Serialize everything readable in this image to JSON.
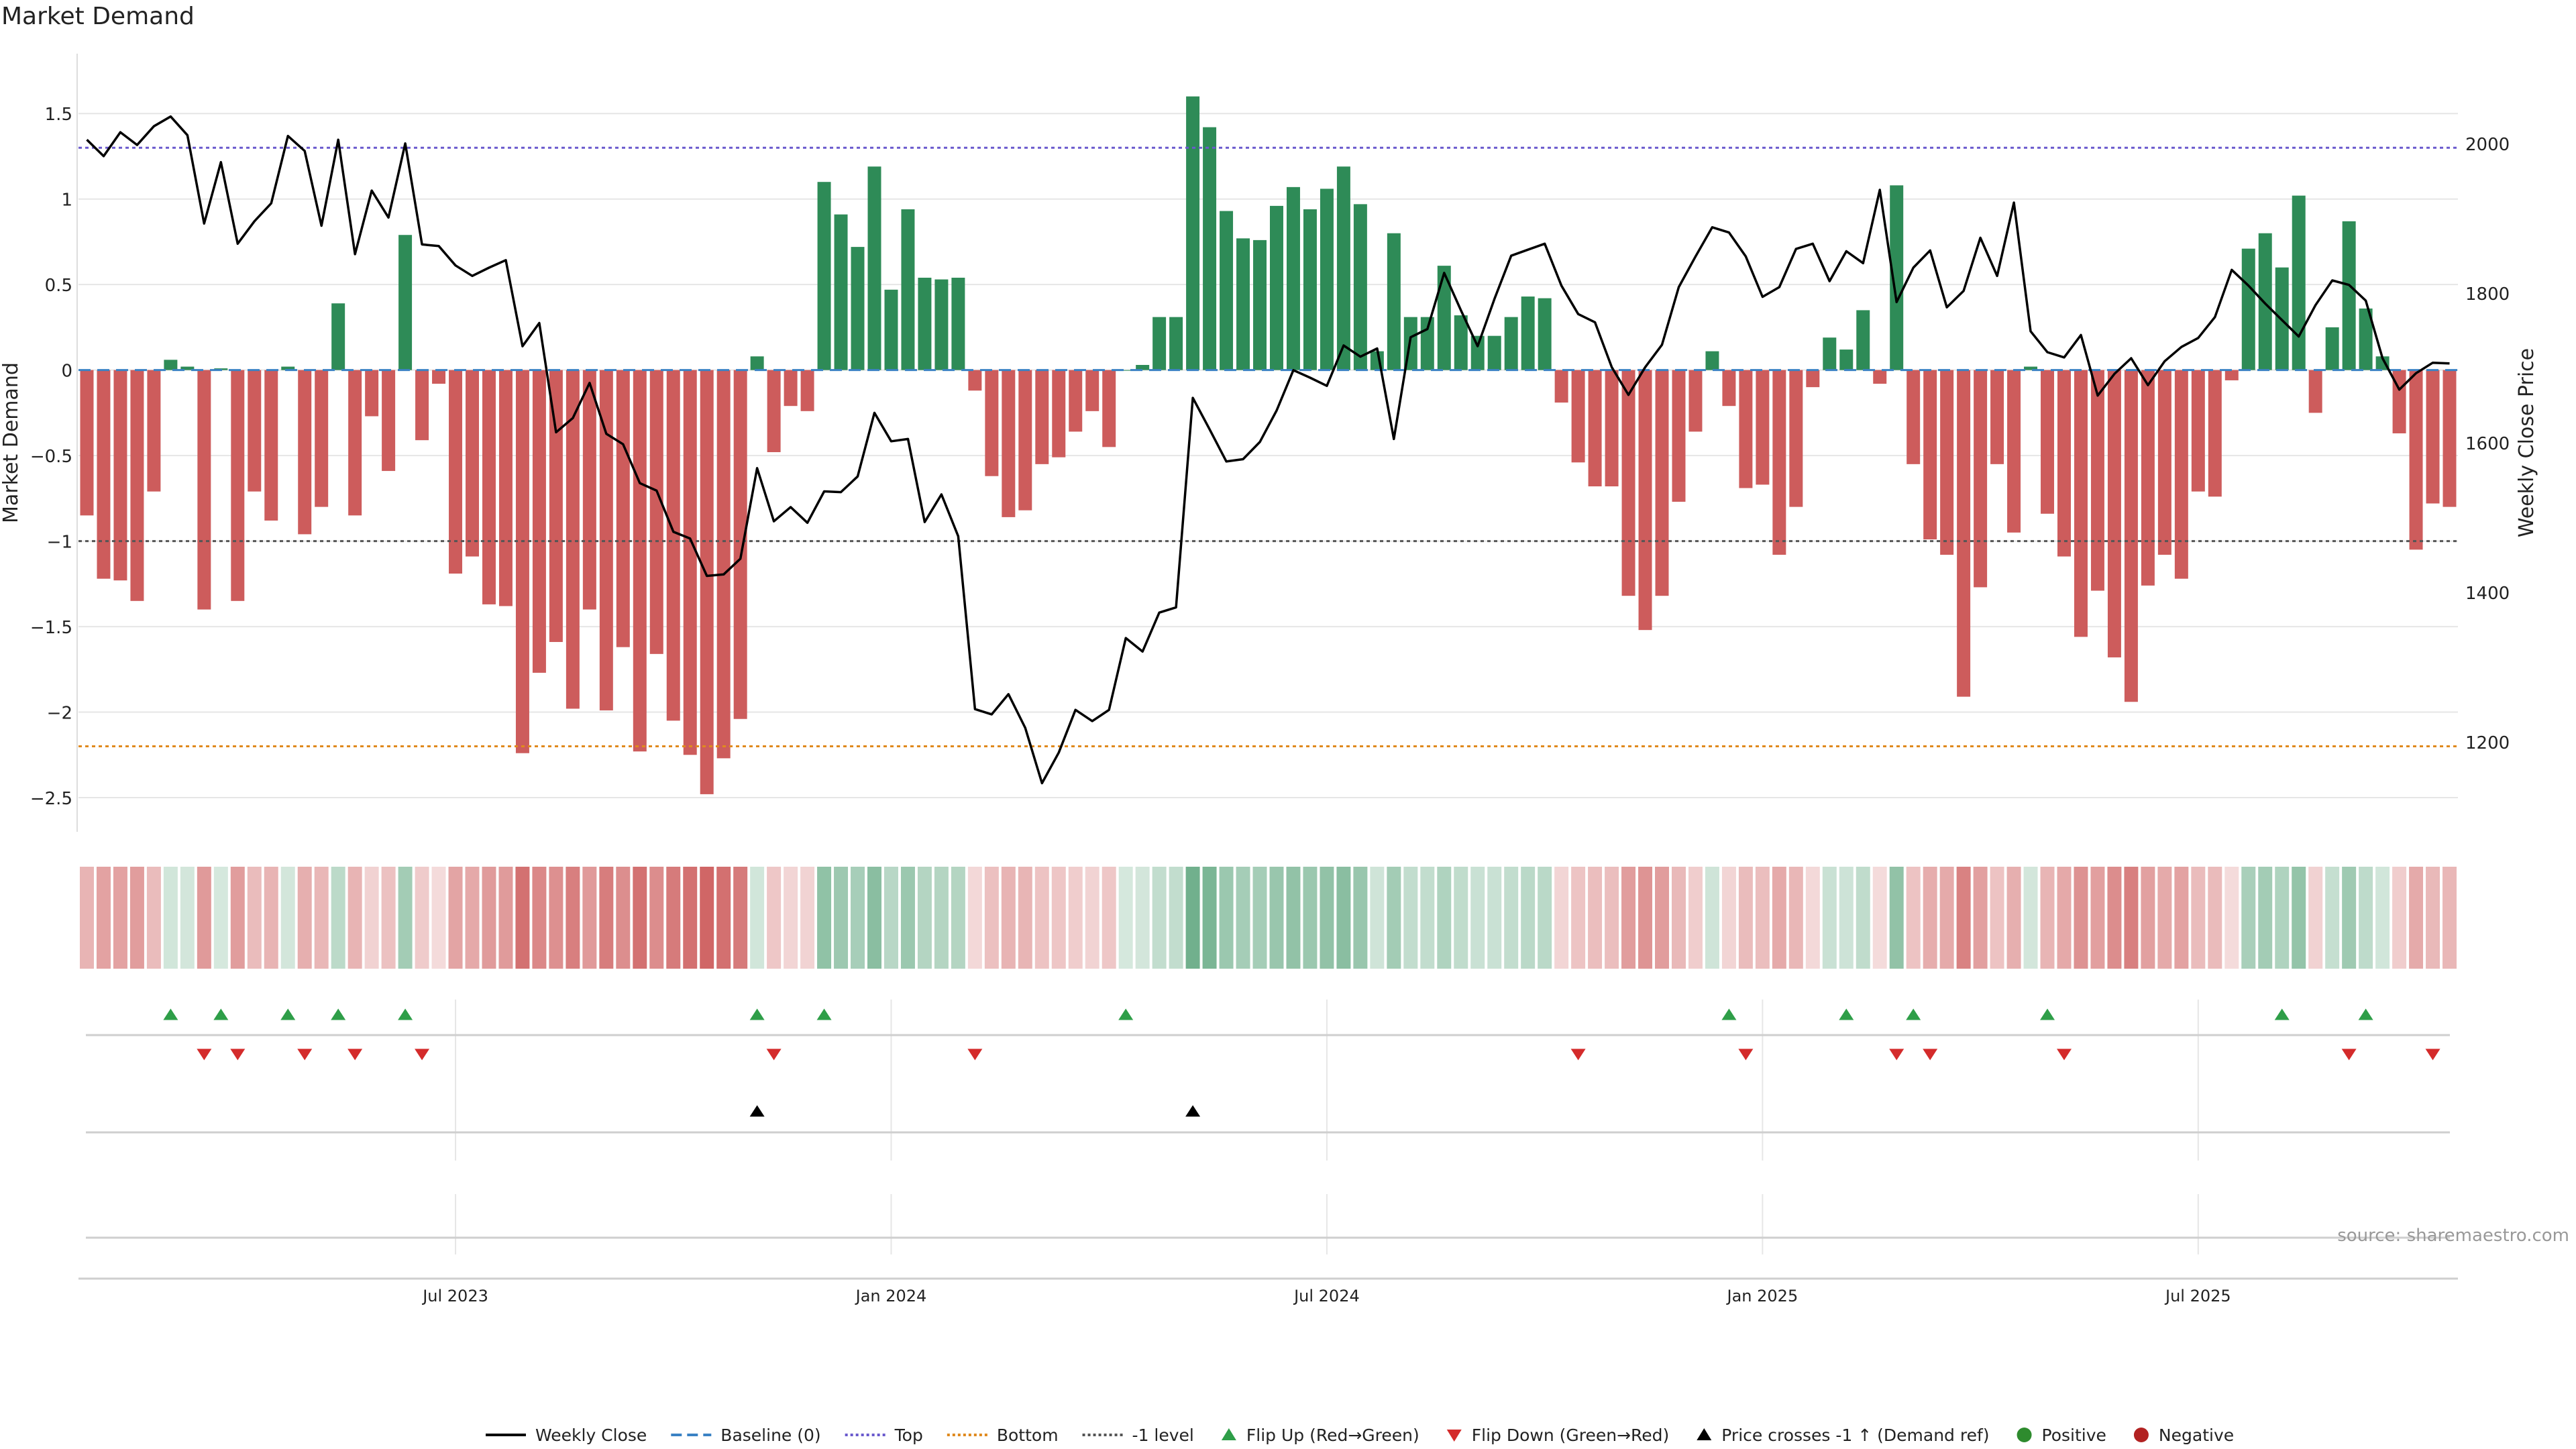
{
  "chart_data": {
    "type": "bar",
    "title": "Market Demand",
    "ylabel": "Market Demand",
    "y2label": "Weekly Close Price",
    "ylim": [
      -2.7,
      1.85
    ],
    "y2lim": [
      1080,
      2120
    ],
    "yticks": [
      1.5,
      1,
      0.5,
      0,
      -0.5,
      -1,
      -1.5,
      -2,
      -2.5
    ],
    "ytick_labels": [
      "1.5",
      "1",
      "0.5",
      "0",
      "−0.5",
      "−1",
      "−1.5",
      "−2",
      "−2.5"
    ],
    "y2ticks": [
      2000,
      1800,
      1600,
      1400,
      1200
    ],
    "y2tick_labels": [
      "2000",
      "1800",
      "1600",
      "1400",
      "1200"
    ],
    "xticks": [
      22,
      48,
      74,
      100,
      126
    ],
    "xtick_labels": [
      "Jul 2023",
      "Jan 2024",
      "Jul 2024",
      "Jan 2025",
      "Jul 2025"
    ],
    "levels": {
      "top": 1.3,
      "bottom": -2.2,
      "minus_one": -1.0
    },
    "colors": {
      "positive": "#2e8b57",
      "negative": "#cd5c5c",
      "line": "#000000",
      "top": "#6a5acd",
      "bottom": "#e08a1e",
      "minus_one": "#555555",
      "baseline": "#3b82c4",
      "flip_up": "#2e9e48",
      "flip_down": "#d42b2b",
      "cross": "#000000",
      "grid": "#e6e6e6"
    },
    "demand": [
      -0.85,
      -1.22,
      -1.23,
      -1.35,
      -0.71,
      0.06,
      0.02,
      -1.4,
      0.01,
      -1.35,
      -0.71,
      -0.88,
      0.02,
      -0.96,
      -0.8,
      0.39,
      -0.85,
      -0.27,
      -0.59,
      0.79,
      -0.41,
      -0.08,
      -1.19,
      -1.09,
      -1.37,
      -1.38,
      -2.24,
      -1.77,
      -1.59,
      -1.98,
      -1.4,
      -1.99,
      -1.62,
      -2.23,
      -1.66,
      -2.05,
      -2.25,
      -2.48,
      -2.27,
      -2.04,
      0.08,
      -0.48,
      -0.21,
      -0.24,
      1.1,
      0.91,
      0.72,
      1.19,
      0.47,
      0.94,
      0.54,
      0.53,
      0.54,
      -0.12,
      -0.62,
      -0.86,
      -0.82,
      -0.55,
      -0.51,
      -0.36,
      -0.24,
      -0.45,
      0.0,
      0.03,
      0.31,
      0.31,
      1.6,
      1.42,
      0.93,
      0.77,
      0.76,
      0.96,
      1.07,
      0.94,
      1.06,
      1.19,
      0.97,
      0.11,
      0.8,
      0.31,
      0.31,
      0.61,
      0.32,
      0.2,
      0.2,
      0.31,
      0.43,
      0.42,
      -0.19,
      -0.54,
      -0.68,
      -0.68,
      -1.32,
      -1.52,
      -1.32,
      -0.77,
      -0.36,
      0.11,
      -0.21,
      -0.69,
      -0.67,
      -1.08,
      -0.8,
      -0.1,
      0.19,
      0.12,
      0.35,
      -0.08,
      1.08,
      -0.55,
      -0.99,
      -1.08,
      -1.91,
      -1.27,
      -0.55,
      -0.95,
      0.02,
      -0.84,
      -1.09,
      -1.56,
      -1.29,
      -1.68,
      -1.94,
      -1.26,
      -1.08,
      -1.22,
      -0.71,
      -0.74,
      -0.06,
      0.71,
      0.8,
      0.6,
      1.02,
      -0.25,
      0.25,
      0.87,
      0.36,
      0.08,
      -0.37,
      -1.05,
      -0.78,
      -0.8
    ],
    "weekly_close": [
      2005,
      1983,
      2015,
      1998,
      2023,
      2036,
      2011,
      1893,
      1975,
      1866,
      1896,
      1920,
      2010,
      1990,
      1890,
      2005,
      1852,
      1937,
      1901,
      2000,
      1865,
      1863,
      1837,
      1823,
      1834,
      1844,
      1729,
      1760,
      1614,
      1633,
      1680,
      1612,
      1598,
      1546,
      1536,
      1481,
      1472,
      1422,
      1424,
      1445,
      1566,
      1495,
      1514,
      1493,
      1535,
      1534,
      1555,
      1640,
      1602,
      1605,
      1494,
      1531,
      1475,
      1244,
      1237,
      1264,
      1219,
      1145,
      1186,
      1243,
      1228,
      1243,
      1339,
      1321,
      1373,
      1380,
      1660,
      1618,
      1575,
      1578,
      1601,
      1643,
      1697,
      1687,
      1676,
      1730,
      1715,
      1726,
      1605,
      1741,
      1752,
      1827,
      1777,
      1729,
      1792,
      1850,
      1858,
      1866,
      1810,
      1772,
      1761,
      1701,
      1664,
      1701,
      1731,
      1808,
      1849,
      1888,
      1881,
      1849,
      1795,
      1808,
      1859,
      1866,
      1816,
      1856,
      1840,
      1938,
      1788,
      1834,
      1857,
      1781,
      1803,
      1874,
      1823,
      1921,
      1749,
      1721,
      1714,
      1744,
      1663,
      1692,
      1713,
      1677,
      1709,
      1728,
      1740,
      1768,
      1831,
      1810,
      1786,
      1764,
      1742,
      1784,
      1817,
      1811,
      1790,
      1713,
      1671,
      1693,
      1707,
      1706
    ]
  },
  "markers": {
    "flip_up": [
      5,
      8,
      12,
      15,
      19,
      40,
      44,
      62,
      98,
      105,
      109,
      117,
      131,
      136
    ],
    "flip_down": [
      7,
      9,
      13,
      16,
      20,
      41,
      53,
      89,
      99,
      108,
      110,
      118,
      135,
      140
    ],
    "price_cross": [
      40,
      66
    ]
  },
  "legend": [
    {
      "label": "Weekly Close",
      "kind": "line"
    },
    {
      "label": "Baseline (0)",
      "kind": "dash"
    },
    {
      "label": "Top",
      "kind": "dots-top"
    },
    {
      "label": "Bottom",
      "kind": "dots-bottom"
    },
    {
      "label": "-1 level",
      "kind": "dots-minus"
    },
    {
      "label": "Flip Up (Red→Green)",
      "kind": "tri-up"
    },
    {
      "label": "Flip Down (Green→Red)",
      "kind": "tri-down"
    },
    {
      "label": "Price crosses -1 ↑ (Demand ref)",
      "kind": "tri-cross"
    },
    {
      "label": "Positive",
      "kind": "dot-pos"
    },
    {
      "label": "Negative",
      "kind": "dot-neg"
    }
  ],
  "source": "source: sharemaestro.com"
}
